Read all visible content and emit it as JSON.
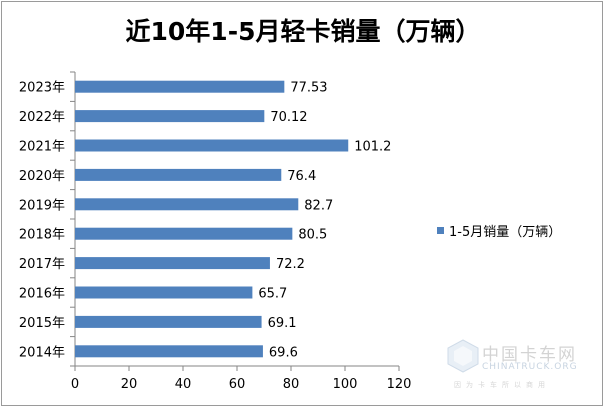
{
  "chart_data": {
    "type": "bar",
    "orientation": "horizontal",
    "title": "近10年1-5月轻卡销量（万辆）",
    "categories": [
      "2023年",
      "2022年",
      "2021年",
      "2020年",
      "2019年",
      "2018年",
      "2017年",
      "2016年",
      "2015年",
      "2014年"
    ],
    "series": [
      {
        "name": "1-5月销量（万辆）",
        "values": [
          77.53,
          70.12,
          101.2,
          76.4,
          82.7,
          80.5,
          72.2,
          65.7,
          69.1,
          69.6
        ],
        "labels": [
          "77.53",
          "70.12",
          "101.2",
          "76.4",
          "82.7",
          "80.5",
          "72.2",
          "65.7",
          "69.1",
          "69.6"
        ]
      }
    ],
    "xlim": [
      0,
      120
    ],
    "xticks": [
      "0",
      "20",
      "40",
      "60",
      "80",
      "100",
      "120"
    ],
    "xlabel": "",
    "ylabel": "",
    "grid": false,
    "legend": "right",
    "bar_color": "#4f81bd",
    "axis_color": "#868686"
  },
  "watermark": {
    "cn": "中国卡车网",
    "en": "CHINATRUCK.ORG",
    "slogan": "因为卡车所以商用"
  }
}
